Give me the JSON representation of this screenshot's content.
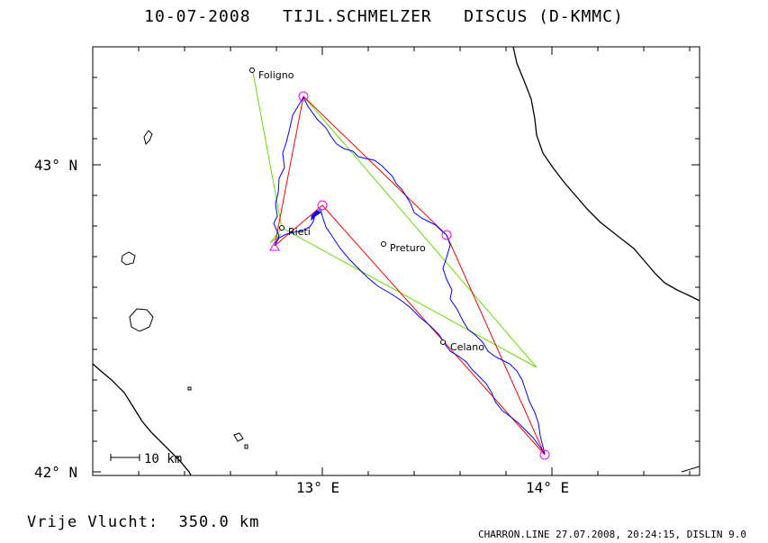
{
  "title": "10-07-2008   TIJL.SCHMELZER   DISCUS (D-KMMC)",
  "axes": {
    "y_labels": [
      "43° N",
      "42° N"
    ],
    "x_labels": [
      "13° E",
      "14° E"
    ]
  },
  "scale_bar": "10 km",
  "places": {
    "foligno": "Foligno",
    "rieti": "Rieti",
    "preturo": "Preturo",
    "celano": "Celano"
  },
  "colors": {
    "track": "#0000ff",
    "task": "#ff0000",
    "optimized": "#66dd00",
    "turnpoint": "#ff00ff"
  },
  "footer": {
    "distance": "Vrije Vlucht:  350.0 km",
    "credit": "CHARRON.LINE 27.07.2008, 20:24:15, DISLIN 9.0"
  }
}
